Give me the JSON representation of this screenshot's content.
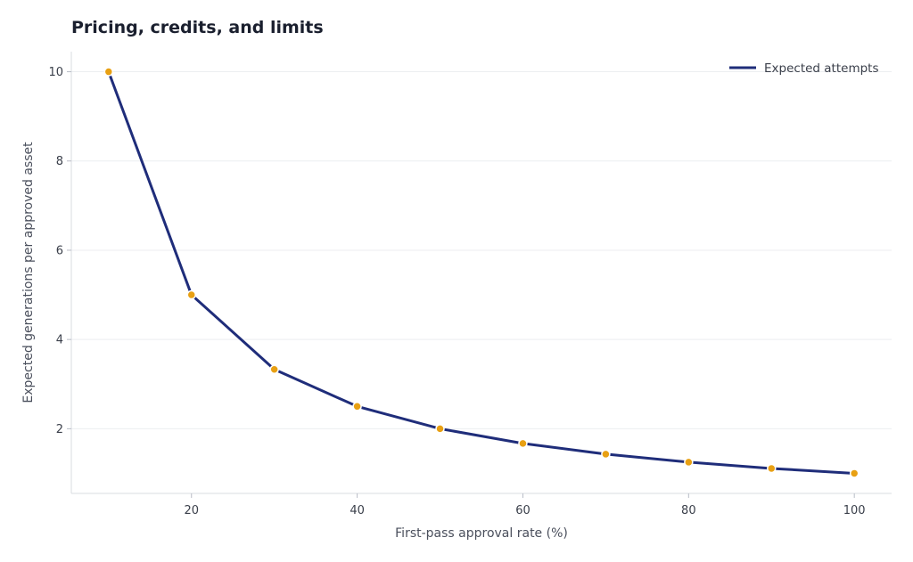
{
  "chart_data": {
    "type": "line",
    "title": "Pricing, credits, and limits",
    "xlabel": "First-pass approval rate (%)",
    "ylabel": "Expected generations per approved asset",
    "xlim": [
      5.5,
      104.5
    ],
    "ylim": [
      0.55,
      10.45
    ],
    "xticks": [
      20,
      40,
      60,
      80,
      100
    ],
    "yticks": [
      2,
      4,
      6,
      8,
      10
    ],
    "grid": "horizontal",
    "legend_position": "top-right",
    "series": [
      {
        "name": "Expected attempts",
        "color": "#1f2d7a",
        "marker_color": "#e8a013",
        "x": [
          10,
          20,
          30,
          40,
          50,
          60,
          70,
          80,
          90,
          100
        ],
        "y": [
          10,
          5,
          3.33,
          2.5,
          2,
          1.67,
          1.43,
          1.25,
          1.11,
          1
        ]
      }
    ]
  }
}
